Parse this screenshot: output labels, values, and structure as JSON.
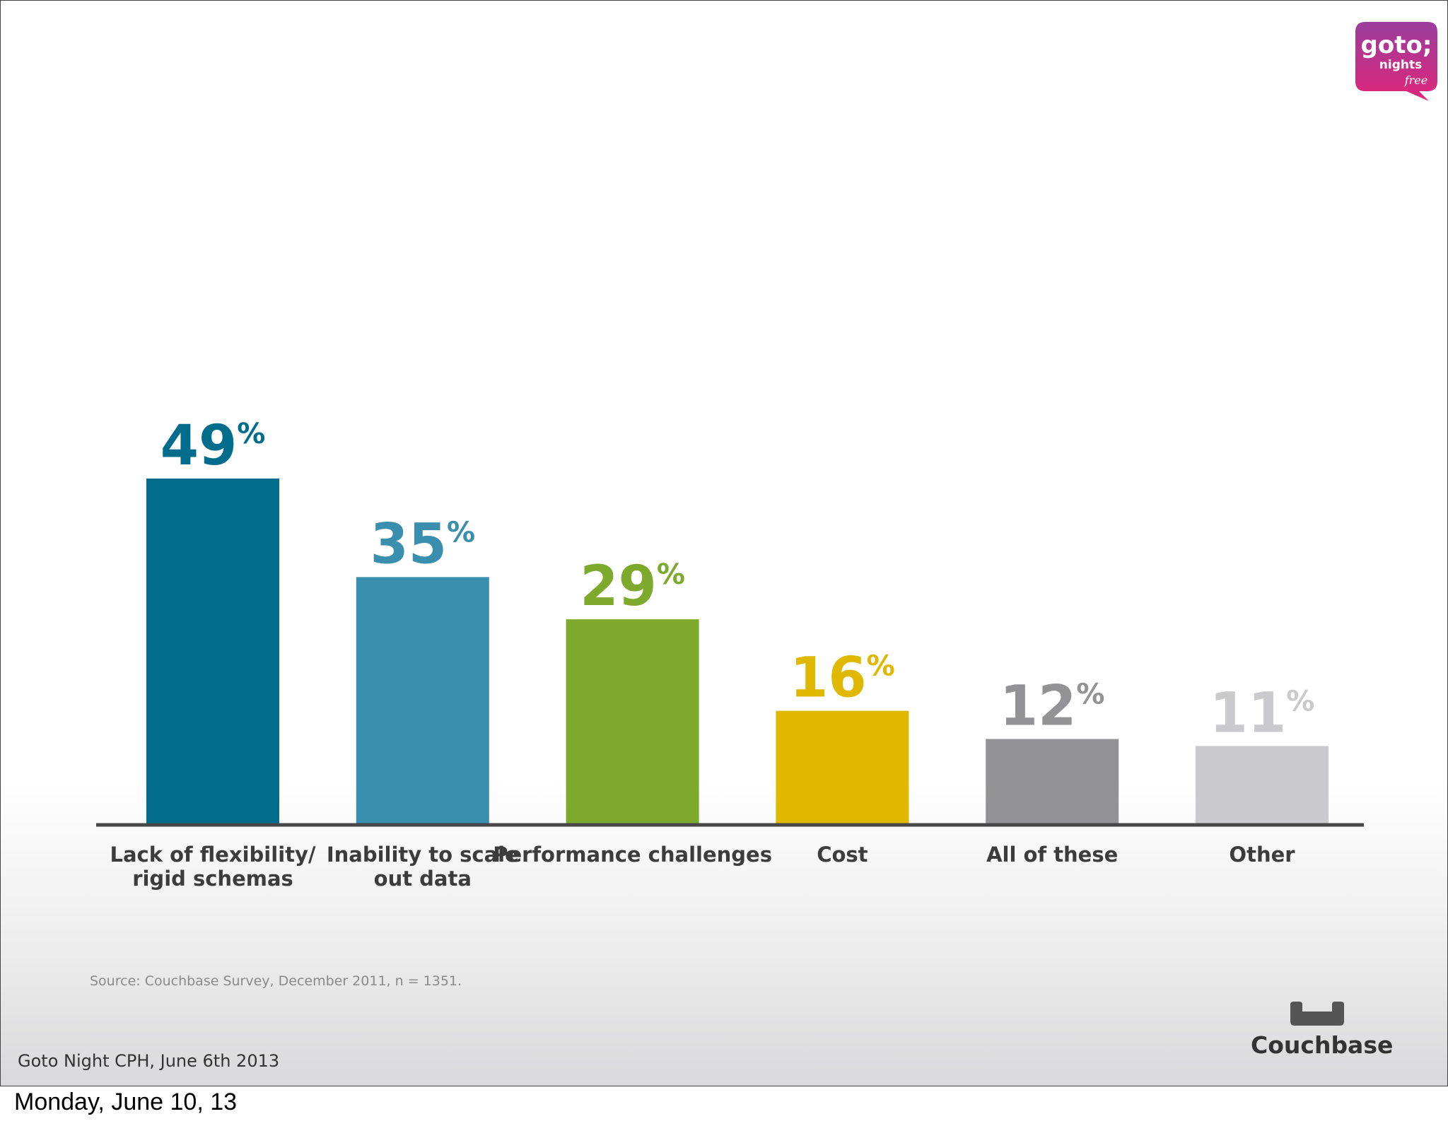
{
  "chart_data": {
    "type": "bar",
    "categories": [
      [
        "Lack of flexibility/",
        "rigid schemas"
      ],
      [
        "Inability to scale",
        "out data"
      ],
      [
        "Performance challenges"
      ],
      [
        "Cost"
      ],
      [
        "All of these"
      ],
      [
        "Other"
      ]
    ],
    "values": [
      49,
      35,
      29,
      16,
      12,
      11
    ],
    "value_suffix": "%",
    "colors": [
      "#006d8d",
      "#3a8faf",
      "#7da92d",
      "#e0b800",
      "#939294",
      "#cacacc"
    ],
    "ylim": [
      0,
      100
    ],
    "title": "",
    "xlabel": "",
    "ylabel": "",
    "grid": false,
    "legend": "none"
  },
  "source_note": "Source: Couchbase Survey, December 2011, n = 1351.",
  "footer_event": "Goto Night CPH, June 6th 2013",
  "logos": {
    "goto": {
      "word": "goto;",
      "sub": "nights",
      "tag": "free",
      "color": "#c8267c"
    },
    "couchbase": {
      "name": "Couchbase",
      "color": "#333333"
    }
  },
  "date_caption": "Monday, June 10, 13"
}
